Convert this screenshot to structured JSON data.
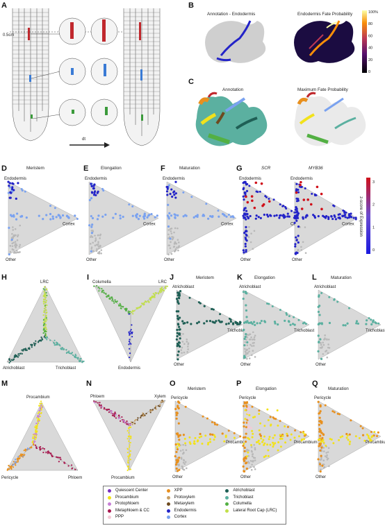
{
  "panels": {
    "A": {
      "letter": "A",
      "scale_label": "0.5cm",
      "time_label": "dt"
    },
    "B": {
      "letter": "B",
      "title_left": "Annotation - Endodermis",
      "title_right": "Endodermis Fate Probability",
      "colorbar_ticks": [
        "100%",
        "80",
        "60",
        "40",
        "20",
        "0"
      ]
    },
    "C": {
      "letter": "C",
      "title_left": "Annotation",
      "title_right": "Maximum Fate Probability"
    },
    "D": {
      "letter": "D",
      "title": "Meristem",
      "vertices": [
        "Endodermis",
        "Cortex",
        "Other"
      ]
    },
    "E": {
      "letter": "E",
      "title": "Elongation",
      "vertices": [
        "Endodermis",
        "Cortex",
        "Other"
      ]
    },
    "F": {
      "letter": "F",
      "title": "Maturation",
      "vertices": [
        "Endodermis",
        "Cortex",
        "Other"
      ]
    },
    "G": {
      "letter": "G",
      "title_left": "SCR",
      "title_right": "MYB36",
      "vertices": [
        "Endodermis",
        "Cortex",
        "Other"
      ],
      "colorbar_label": "z-score of Expression",
      "colorbar_ticks": [
        "3",
        "2",
        "1",
        "0"
      ]
    },
    "H": {
      "letter": "H",
      "vertices": [
        "LRC",
        "Atrichoblast",
        "Trichoblast"
      ]
    },
    "I": {
      "letter": "I",
      "vertices": [
        "Columella",
        "LRC",
        "Endodermis"
      ]
    },
    "J": {
      "letter": "J",
      "title": "Meristem",
      "vertices": [
        "Atrichoblast",
        "Trichoblast",
        "Other"
      ]
    },
    "K": {
      "letter": "K",
      "title": "Elongation",
      "vertices": [
        "Atrichoblast",
        "Trichoblast",
        "Other"
      ]
    },
    "L": {
      "letter": "L",
      "title": "Maturation",
      "vertices": [
        "Atrichoblast",
        "Trichoblast",
        "Other"
      ]
    },
    "M": {
      "letter": "M",
      "vertices": [
        "Procambium",
        "Pericycle",
        "Phloem"
      ]
    },
    "N": {
      "letter": "N",
      "vertices": [
        "Phloem",
        "Xylem",
        "Procambium"
      ]
    },
    "O": {
      "letter": "O",
      "title": "Meristem",
      "vertices": [
        "Pericycle",
        "Procambium",
        "Other"
      ]
    },
    "P": {
      "letter": "P",
      "title": "Elongation",
      "vertices": [
        "Pericycle",
        "Procambium",
        "Other"
      ]
    },
    "Q": {
      "letter": "Q",
      "title": "Maturation",
      "vertices": [
        "Pericycle",
        "Procambium",
        "Other"
      ]
    }
  },
  "legend": [
    {
      "label": "Quiescent Center",
      "color": "#7b2fbf"
    },
    {
      "label": "Procambium",
      "color": "#f2e21b"
    },
    {
      "label": "Protophloem",
      "color": "#c77fd6"
    },
    {
      "label": "Metaphloem & CC",
      "color": "#a8184f"
    },
    {
      "label": "PPP",
      "color": "#f4c9d6"
    },
    {
      "label": "XPP",
      "color": "#e8901e"
    },
    {
      "label": "Protoxylem",
      "color": "#c8a066"
    },
    {
      "label": "Metaxylem",
      "color": "#6e4a1f"
    },
    {
      "label": "Endodermis",
      "color": "#2323c8"
    },
    {
      "label": "Cortex",
      "color": "#7aa2f0"
    },
    {
      "label": "Atrichoblast",
      "color": "#1f5f55"
    },
    {
      "label": "Trichoblast",
      "color": "#5bb0a0"
    },
    {
      "label": "Columella",
      "color": "#53b043"
    },
    {
      "label": "Lateral Root Cap (LRC)",
      "color": "#c2e04a"
    }
  ]
}
